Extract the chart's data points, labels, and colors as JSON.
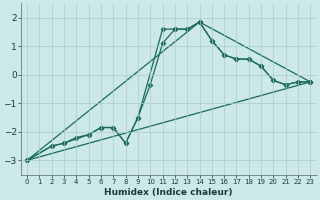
{
  "xlabel": "Humidex (Indice chaleur)",
  "bg_color": "#cce8e8",
  "grid_color": "#a8cccc",
  "line_color": "#1a6b5a",
  "marker": "D",
  "markersize": 2.5,
  "linewidth": 0.9,
  "xlim": [
    -0.5,
    23.5
  ],
  "ylim": [
    -3.5,
    2.5
  ],
  "yticks": [
    -3,
    -2,
    -1,
    0,
    1,
    2
  ],
  "xticks": [
    0,
    1,
    2,
    3,
    4,
    5,
    6,
    7,
    8,
    9,
    10,
    11,
    12,
    13,
    14,
    15,
    16,
    17,
    18,
    19,
    20,
    21,
    22,
    23
  ],
  "lines": [
    {
      "x": [
        0,
        2,
        3,
        4,
        5,
        6,
        7,
        8,
        9,
        10,
        11,
        12,
        13,
        14,
        15,
        16,
        17,
        18,
        19,
        20,
        21,
        22,
        23
      ],
      "y": [
        -3.0,
        -2.5,
        -2.4,
        -2.2,
        -2.1,
        -1.85,
        -1.85,
        -2.4,
        -1.5,
        -0.35,
        1.1,
        1.6,
        1.6,
        1.85,
        1.2,
        0.7,
        0.55,
        0.55,
        0.3,
        -0.2,
        -0.35,
        -0.25,
        -0.25
      ]
    },
    {
      "x": [
        0,
        2,
        3,
        5,
        6,
        7,
        8,
        9,
        11,
        12,
        13,
        14,
        15,
        16,
        17,
        18,
        19,
        20,
        21,
        22,
        23
      ],
      "y": [
        -3.0,
        -2.5,
        -2.4,
        -2.1,
        -1.85,
        -1.85,
        -2.4,
        -1.5,
        1.6,
        1.6,
        1.6,
        1.85,
        1.2,
        0.7,
        0.55,
        0.55,
        0.3,
        -0.2,
        -0.35,
        -0.25,
        -0.25
      ]
    },
    {
      "x": [
        0,
        23
      ],
      "y": [
        -3.0,
        -0.25
      ]
    },
    {
      "x": [
        0,
        14,
        23
      ],
      "y": [
        -3.0,
        1.85,
        -0.25
      ]
    }
  ]
}
